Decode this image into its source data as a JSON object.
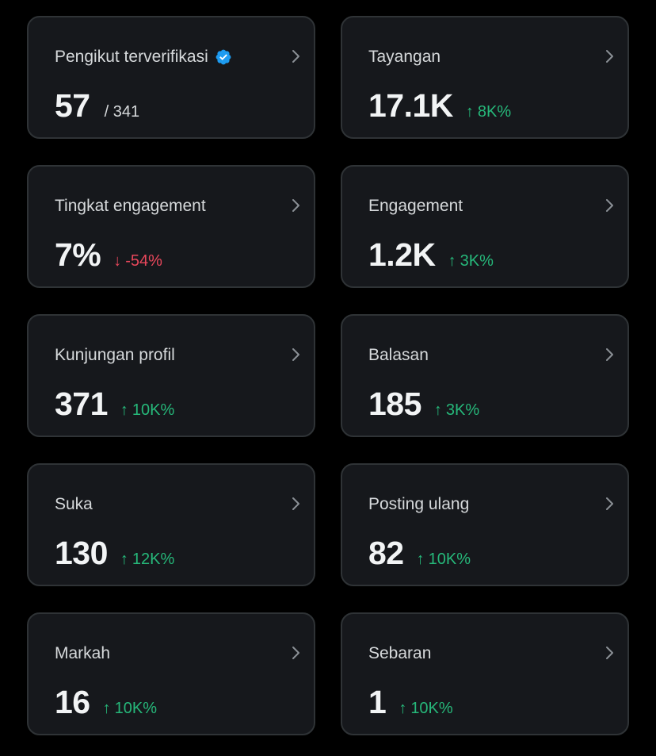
{
  "colors": {
    "background": "#000000",
    "card": "#16181c",
    "card_border": "#2f3336",
    "positive": "#26b87a",
    "negative": "#e8475b",
    "verified": "#1d9bf0"
  },
  "cards": [
    {
      "label": "Pengikut terverifikasi",
      "value": "57",
      "total": "/ 341",
      "verified_icon": "verified-badge-icon"
    },
    {
      "label": "Tayangan",
      "value": "17.1K",
      "delta_arrow": "↑",
      "delta": "8K%",
      "direction": "up"
    },
    {
      "label": "Tingkat engagement",
      "value": "7%",
      "delta_arrow": "↓",
      "delta": "-54%",
      "direction": "down"
    },
    {
      "label": "Engagement",
      "value": "1.2K",
      "delta_arrow": "↑",
      "delta": "3K%",
      "direction": "up"
    },
    {
      "label": "Kunjungan profil",
      "value": "371",
      "delta_arrow": "↑",
      "delta": "10K%",
      "direction": "up"
    },
    {
      "label": "Balasan",
      "value": "185",
      "delta_arrow": "↑",
      "delta": "3K%",
      "direction": "up"
    },
    {
      "label": "Suka",
      "value": "130",
      "delta_arrow": "↑",
      "delta": "12K%",
      "direction": "up"
    },
    {
      "label": "Posting ulang",
      "value": "82",
      "delta_arrow": "↑",
      "delta": "10K%",
      "direction": "up"
    },
    {
      "label": "Markah",
      "value": "16",
      "delta_arrow": "↑",
      "delta": "10K%",
      "direction": "up"
    },
    {
      "label": "Sebaran",
      "value": "1",
      "delta_arrow": "↑",
      "delta": "10K%",
      "direction": "up"
    }
  ]
}
